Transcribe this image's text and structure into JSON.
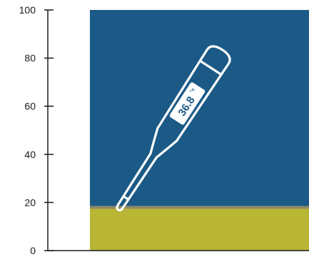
{
  "chart_data": {
    "type": "bar",
    "title": "",
    "xlabel": "",
    "ylabel": "",
    "ylim": [
      0,
      100
    ],
    "yticks": [
      0,
      20,
      40,
      60,
      80,
      100
    ],
    "ytick_labels": [
      "0",
      "20",
      "40",
      "60",
      "80",
      "100"
    ],
    "grid": false,
    "bar": {
      "total_value": 100,
      "lower_value": 18,
      "upper_color": "#1b5a86",
      "lower_color": "#b9b535",
      "divider_color": "#8a8a6a"
    },
    "illustration": {
      "icon": "digital-thermometer-icon",
      "reading": "36.8",
      "unit": "°c"
    }
  }
}
